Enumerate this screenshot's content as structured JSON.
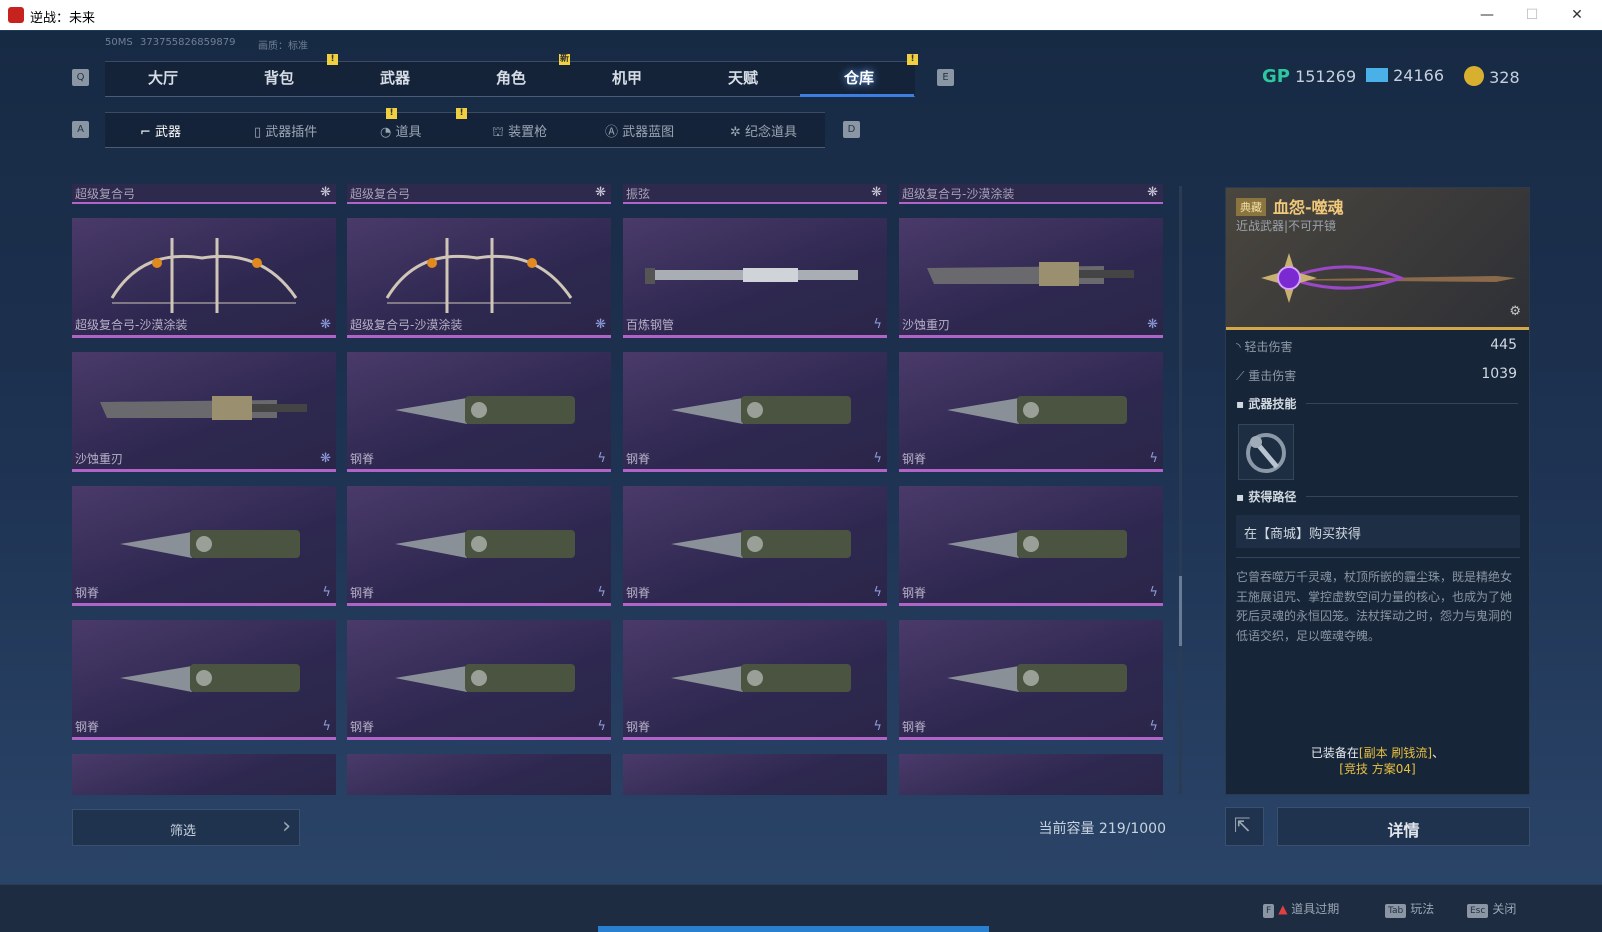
{
  "window": {
    "title": "逆战：未来",
    "min": "—",
    "max": "☐",
    "close": "✕"
  },
  "info": {
    "ping": "50MS",
    "id": "373755826859879",
    "quality": "画质：标准"
  },
  "main_tabs": {
    "key_left": "Q",
    "key_right": "E",
    "items": [
      {
        "label": "大厅"
      },
      {
        "label": "背包",
        "badge": "!"
      },
      {
        "label": "武器"
      },
      {
        "label": "角色",
        "badge": "新"
      },
      {
        "label": "机甲"
      },
      {
        "label": "天赋"
      },
      {
        "label": "仓库",
        "badge": "!",
        "active": true
      }
    ]
  },
  "sub_tabs": {
    "key_left": "A",
    "key_right": "D",
    "items": [
      {
        "label": "武器",
        "icon": "gun-icon",
        "active": true
      },
      {
        "label": "武器插件",
        "icon": "plugin-icon",
        "badge": "!"
      },
      {
        "label": "道具",
        "icon": "item-icon",
        "badge": "!"
      },
      {
        "label": "装置枪",
        "icon": "device-gun-icon"
      },
      {
        "label": "武器蓝图",
        "icon": "blueprint-icon"
      },
      {
        "label": "纪念道具",
        "icon": "memorial-icon"
      }
    ]
  },
  "currency": [
    {
      "icon": "gp-icon",
      "value": "151269",
      "color": "#2ec8a0"
    },
    {
      "icon": "ticket-icon",
      "value": "24166",
      "color": "#4ab0e8"
    },
    {
      "icon": "coin-icon",
      "value": "328",
      "color": "#d8b030"
    }
  ],
  "grid": {
    "headers": [
      {
        "name": "超级复合弓",
        "icon": "rarity-icon"
      },
      {
        "name": "超级复合弓",
        "icon": "rarity-icon"
      },
      {
        "name": "振弦",
        "icon": "rarity-icon"
      },
      {
        "name": "超级复合弓-沙漠涂装",
        "icon": "rarity-icon"
      }
    ],
    "items": [
      {
        "name": "超级复合弓-沙漠涂装",
        "type": "bow",
        "icon": "rarity-icon"
      },
      {
        "name": "超级复合弓-沙漠涂装",
        "type": "bow",
        "icon": "rarity-icon"
      },
      {
        "name": "百炼钢管",
        "type": "pipe",
        "icon": "lightning-icon"
      },
      {
        "name": "沙蚀重刃",
        "type": "blade",
        "icon": "rarity-icon"
      },
      {
        "name": "沙蚀重刃",
        "type": "blade",
        "icon": "rarity-icon"
      },
      {
        "name": "钢脊",
        "type": "knife",
        "icon": "lightning-icon"
      },
      {
        "name": "钢脊",
        "type": "knife",
        "icon": "lightning-icon"
      },
      {
        "name": "钢脊",
        "type": "knife",
        "icon": "lightning-icon"
      },
      {
        "name": "钢脊",
        "type": "knife",
        "icon": "lightning-icon"
      },
      {
        "name": "钢脊",
        "type": "knife",
        "icon": "lightning-icon"
      },
      {
        "name": "钢脊",
        "type": "knife",
        "icon": "lightning-icon"
      },
      {
        "name": "钢脊",
        "type": "knife",
        "icon": "lightning-icon"
      },
      {
        "name": "钢脊",
        "type": "knife",
        "icon": "lightning-icon"
      },
      {
        "name": "钢脊",
        "type": "knife",
        "icon": "lightning-icon"
      },
      {
        "name": "钢脊",
        "type": "knife",
        "icon": "lightning-icon"
      },
      {
        "name": "钢脊",
        "type": "knife",
        "icon": "lightning-icon"
      },
      {
        "name": "",
        "type": "empty"
      },
      {
        "name": "",
        "type": "empty"
      },
      {
        "name": "",
        "type": "empty"
      },
      {
        "name": "",
        "type": "empty"
      }
    ]
  },
  "detail": {
    "rarity": "典藏",
    "name": "血怨-噬魂",
    "subtitle": "近战武器|不可开镜",
    "stats": [
      {
        "label": "轻击伤害",
        "value": "445"
      },
      {
        "label": "重击伤害",
        "value": "1039"
      }
    ],
    "skill_title": "武器技能",
    "source_title": "获得路径",
    "source": "在【商城】购买获得",
    "description": "它曾吞噬万千灵魂，杖顶所嵌的霾尘珠，既是精绝女王施展诅咒、掌控虚数空间力量的核心，也成为了她死后灵魂的永恒囚笼。法杖挥动之时，怨力与鬼洞的低语交织，足以噬魂夺魄。",
    "equipped_prefix": "已装备在",
    "equipped_1": "[副本 刷钱流]",
    "equipped_sep": "、",
    "equipped_2": "[竞技 方案04]"
  },
  "footer": {
    "filter": "筛选",
    "capacity": "当前容量 219/1000",
    "details": "详情"
  },
  "hints": [
    {
      "key": "F",
      "label": "道具过期"
    },
    {
      "key": "Tab",
      "label": "玩法"
    },
    {
      "key": "Esc",
      "label": "关闭"
    }
  ]
}
